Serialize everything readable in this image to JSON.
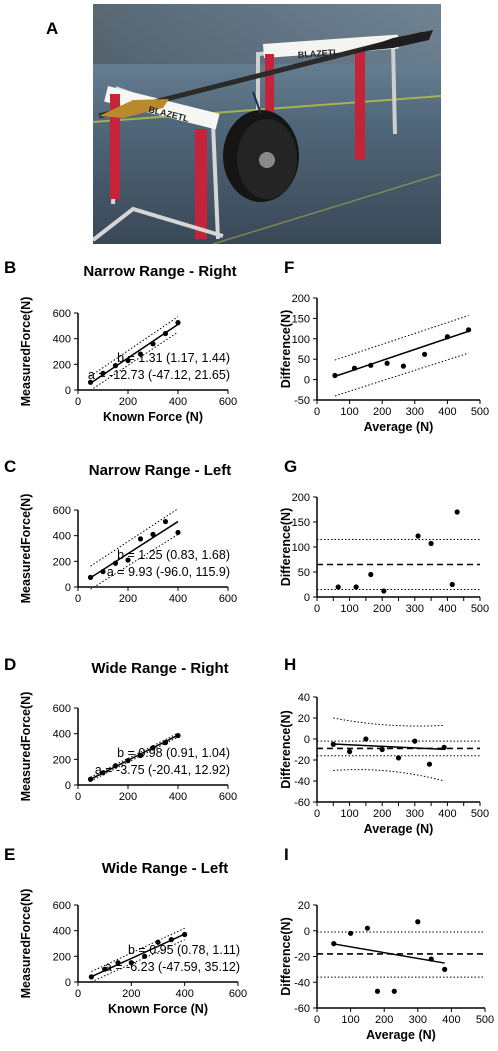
{
  "figure": {
    "photo_letter": "A",
    "photo_description_icon": "kayak-paddle-force-rig-photo",
    "photo_hurdle_text": "BLAZETL"
  },
  "chart_data": [
    {
      "letter": "B",
      "type": "scatter",
      "title": "Narrow Range - Right",
      "xlabel": "Known Force (N)",
      "ylabel": "MeasuredForce(N)",
      "xlim": [
        0,
        600
      ],
      "ylim": [
        0,
        600
      ],
      "xticks": [
        "0",
        "200",
        "400",
        "600"
      ],
      "yticks": [
        "0",
        "200",
        "400",
        "600"
      ],
      "points": [
        [
          50,
          60
        ],
        [
          100,
          130
        ],
        [
          150,
          190
        ],
        [
          200,
          230
        ],
        [
          250,
          280
        ],
        [
          300,
          360
        ],
        [
          350,
          440
        ],
        [
          400,
          525
        ]
      ],
      "fit": {
        "slope": 1.31,
        "intercept": -12.73,
        "x_range": [
          50,
          400
        ],
        "band_half_width": [
          55,
          60
        ]
      },
      "annotation_b": "b = 1.31 (1.17, 1.44)",
      "annotation_a": "a = -12.73 (-47.12, 21.65)"
    },
    {
      "letter": "C",
      "type": "scatter",
      "title": "Narrow  Range - Left",
      "xlabel": "",
      "ylabel": "MeasuredForce(N)",
      "xlim": [
        0,
        600
      ],
      "ylim": [
        0,
        600
      ],
      "xticks": [
        "0",
        "200",
        "400",
        "600"
      ],
      "yticks": [
        "0",
        "200",
        "400",
        "600"
      ],
      "points": [
        [
          50,
          75
        ],
        [
          100,
          120
        ],
        [
          150,
          185
        ],
        [
          200,
          210
        ],
        [
          250,
          375
        ],
        [
          300,
          410
        ],
        [
          350,
          510
        ],
        [
          400,
          425
        ]
      ],
      "fit": {
        "slope": 1.25,
        "intercept": 9.93,
        "x_range": [
          50,
          400
        ],
        "band_half_width": [
          90,
          100
        ]
      },
      "annotation_b": "b = 1.25 (0.83, 1.68)",
      "annotation_a": "a = 9.93 (-96.0, 115.9)"
    },
    {
      "letter": "D",
      "type": "scatter",
      "title": "Wide Range - Right",
      "xlabel": "",
      "ylabel": "MeasuredForce(N)",
      "xlim": [
        0,
        600
      ],
      "ylim": [
        0,
        600
      ],
      "xticks": [
        "0",
        "200",
        "400",
        "600"
      ],
      "yticks": [
        "0",
        "200",
        "400",
        "600"
      ],
      "points": [
        [
          50,
          45
        ],
        [
          100,
          95
        ],
        [
          150,
          150
        ],
        [
          200,
          190
        ],
        [
          250,
          230
        ],
        [
          300,
          290
        ],
        [
          350,
          330
        ],
        [
          400,
          385
        ]
      ],
      "fit": {
        "slope": 0.98,
        "intercept": -3.75,
        "x_range": [
          50,
          400
        ],
        "band_half_width": [
          15,
          15
        ]
      },
      "annotation_b": "b = 0.98 (0.91, 1.04)",
      "annotation_a": "a = -3.75 (-20.41, 12.92)"
    },
    {
      "letter": "E",
      "type": "scatter",
      "title": "Wide Range - Left",
      "xlabel": "Known Force (N)",
      "ylabel": "MeasuredForce(N)",
      "xlim": [
        0,
        600
      ],
      "ylim": [
        0,
        600
      ],
      "xticks": [
        "0",
        "200",
        "400",
        "600"
      ],
      "yticks": [
        "0",
        "200",
        "400",
        "600"
      ],
      "points": [
        [
          50,
          40
        ],
        [
          100,
          100
        ],
        [
          150,
          150
        ],
        [
          200,
          150
        ],
        [
          250,
          200
        ],
        [
          300,
          310
        ],
        [
          350,
          330
        ],
        [
          400,
          370
        ]
      ],
      "fit": {
        "slope": 0.95,
        "intercept": -6.23,
        "x_range": [
          50,
          400
        ],
        "band_half_width": [
          40,
          45
        ]
      },
      "annotation_b": "b = 0.95 (0.78, 1.11)",
      "annotation_a": "a = -6.23 (-47.59, 35.12)"
    },
    {
      "letter": "F",
      "type": "scatter",
      "title": "",
      "xlabel": "Average (N)",
      "ylabel": "Difference(N)",
      "xlim": [
        0,
        500
      ],
      "ylim": [
        -50,
        200
      ],
      "xticks": [
        "0",
        "100",
        "200",
        "300",
        "400",
        "500"
      ],
      "yticks": [
        "-50",
        "0",
        "50",
        "100",
        "150",
        "200"
      ],
      "points": [
        [
          55,
          10
        ],
        [
          115,
          28
        ],
        [
          165,
          35
        ],
        [
          215,
          40
        ],
        [
          265,
          33
        ],
        [
          330,
          62
        ],
        [
          400,
          105
        ],
        [
          465,
          122
        ]
      ],
      "fit": {
        "kind": "regression",
        "slope": 0.27,
        "intercept": -7,
        "x_range": [
          55,
          465
        ],
        "lower_band": [
          -40,
          65
        ],
        "upper_band": [
          48,
          157
        ]
      },
      "annotation_b": "",
      "annotation_a": ""
    },
    {
      "letter": "G",
      "type": "scatter",
      "title": "",
      "xlabel": "",
      "ylabel": "Difference(N)",
      "xlim": [
        0,
        500
      ],
      "ylim": [
        0,
        200
      ],
      "xticks": [
        "0",
        "50",
        "100",
        "150",
        "200",
        "250",
        "300",
        "350",
        "400",
        "450",
        "500"
      ],
      "yticks": [
        "0",
        "50",
        "100",
        "150",
        "200"
      ],
      "points": [
        [
          65,
          20
        ],
        [
          120,
          20
        ],
        [
          165,
          45
        ],
        [
          205,
          12
        ],
        [
          310,
          122
        ],
        [
          350,
          107
        ],
        [
          415,
          25
        ],
        [
          430,
          170
        ]
      ],
      "fit": {
        "kind": "bland_altman",
        "mean": 65,
        "lower": 15,
        "upper": 115
      },
      "annotation_b": "",
      "annotation_a": ""
    },
    {
      "letter": "H",
      "type": "scatter",
      "title": "",
      "xlabel": "Average (N)",
      "ylabel": "Difference(N)",
      "xlim": [
        0,
        500
      ],
      "ylim": [
        -60,
        40
      ],
      "xticks": [
        "0",
        "50",
        "100",
        "150",
        "200",
        "250",
        "300",
        "350",
        "400",
        "450",
        "500"
      ],
      "yticks": [
        "-60",
        "-40",
        "-20",
        "0",
        "20",
        "40"
      ],
      "points": [
        [
          50,
          -5
        ],
        [
          100,
          -12
        ],
        [
          150,
          0
        ],
        [
          200,
          -10
        ],
        [
          250,
          -18
        ],
        [
          300,
          -2
        ],
        [
          345,
          -24
        ],
        [
          390,
          -8
        ]
      ],
      "fit": {
        "kind": "bland_altman_regression",
        "mean": -9,
        "lower": -16,
        "upper": -2,
        "slope": -0.015,
        "intercept": -4,
        "x_range": [
          50,
          390
        ],
        "outer_lower": [
          -30,
          -40
        ],
        "outer_upper": [
          20,
          13
        ]
      },
      "annotation_b": "",
      "annotation_a": ""
    },
    {
      "letter": "I",
      "type": "scatter",
      "title": "",
      "xlabel": "Average (N)",
      "ylabel": "Difference(N)",
      "xlim": [
        0,
        500
      ],
      "ylim": [
        -60,
        20
      ],
      "xticks": [
        "0",
        "100",
        "200",
        "300",
        "400",
        "500"
      ],
      "yticks": [
        "-60",
        "-40",
        "-20",
        "0",
        "20"
      ],
      "points": [
        [
          50,
          -10
        ],
        [
          100,
          -2
        ],
        [
          150,
          2
        ],
        [
          180,
          -47
        ],
        [
          230,
          -47
        ],
        [
          300,
          7
        ],
        [
          340,
          -22
        ],
        [
          380,
          -30
        ]
      ],
      "fit": {
        "kind": "bland_altman_regression",
        "mean": -18,
        "lower": -36,
        "upper": -1,
        "slope": -0.045,
        "intercept": -8,
        "x_range": [
          50,
          380
        ]
      },
      "annotation_b": "",
      "annotation_a": ""
    }
  ]
}
